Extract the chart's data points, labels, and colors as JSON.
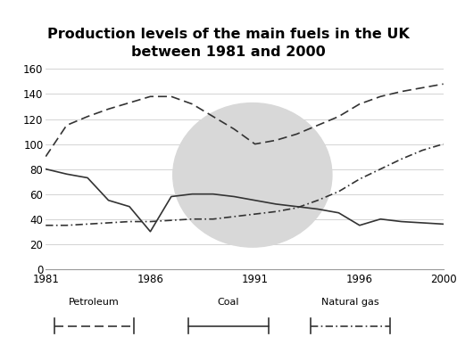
{
  "title": "Production levels of the main fuels in the UK\nbetween 1981 and 2000",
  "years": [
    1981,
    1982,
    1983,
    1984,
    1985,
    1986,
    1987,
    1988,
    1989,
    1990,
    1991,
    1992,
    1993,
    1994,
    1995,
    1996,
    1997,
    1998,
    1999,
    2000
  ],
  "petroleum": [
    90,
    115,
    122,
    128,
    133,
    138,
    138,
    132,
    122,
    112,
    100,
    103,
    108,
    115,
    122,
    132,
    138,
    142,
    145,
    148
  ],
  "coal": [
    80,
    76,
    73,
    55,
    50,
    30,
    58,
    60,
    60,
    58,
    55,
    52,
    50,
    48,
    45,
    35,
    40,
    38,
    37,
    36
  ],
  "natural_gas": [
    35,
    35,
    36,
    37,
    38,
    38,
    39,
    40,
    40,
    42,
    44,
    46,
    49,
    55,
    62,
    72,
    80,
    88,
    95,
    100
  ],
  "ylim": [
    0,
    160
  ],
  "yticks": [
    0,
    20,
    40,
    60,
    80,
    100,
    120,
    140,
    160
  ],
  "xticks": [
    1981,
    1986,
    1991,
    1996,
    2000
  ],
  "bg_color": "#ffffff",
  "watermark_color": "#d8d8d8",
  "line_color": "#333333",
  "title_fontsize": 11.5,
  "legend_petroleum": "Petroleum",
  "legend_coal": "Coal",
  "legend_natural_gas": "Natural gas"
}
